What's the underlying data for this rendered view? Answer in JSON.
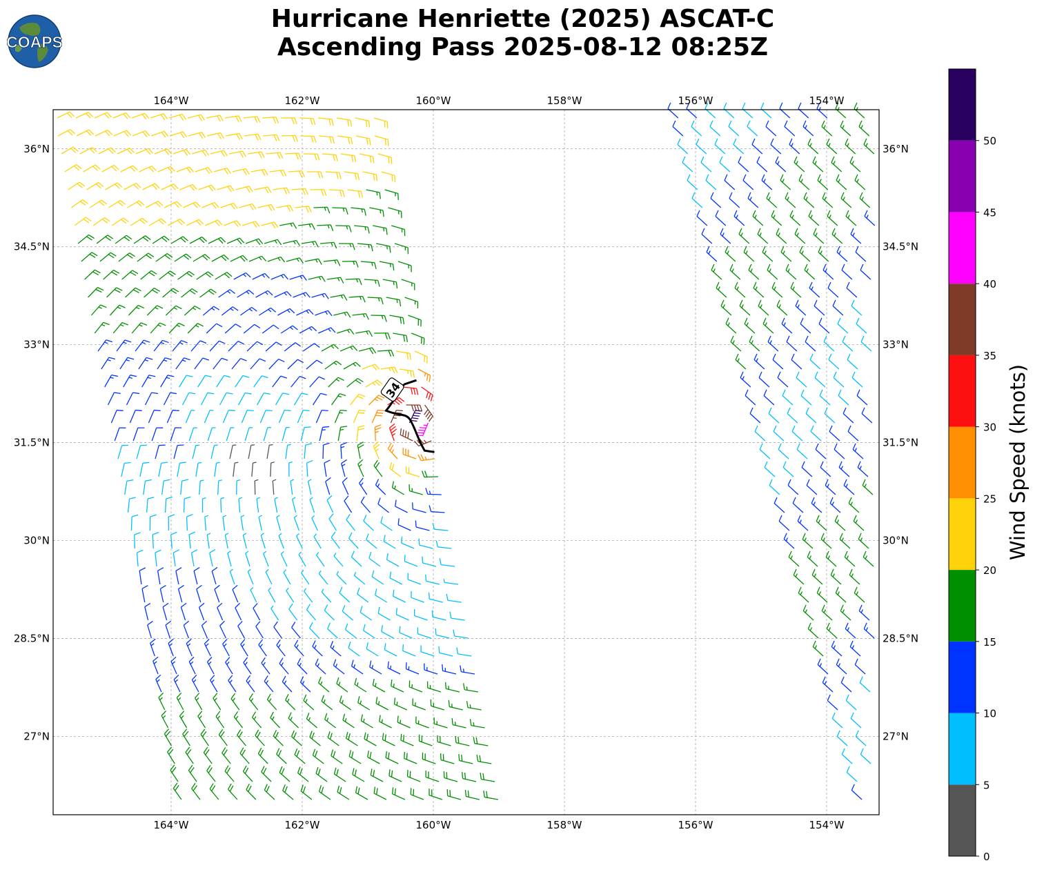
{
  "title": {
    "line1": "Hurricane Henriette (2025) ASCAT-C",
    "line2": "Ascending Pass 2025-08-12 08:25Z"
  },
  "logo": {
    "text": "COAPS",
    "icon": "globe-icon"
  },
  "map": {
    "lon_range": [
      -165.8,
      -153.2
    ],
    "lat_range": [
      25.8,
      36.6
    ],
    "lon_ticks": [
      "164°W",
      "162°W",
      "160°W",
      "158°W",
      "156°W",
      "154°W"
    ],
    "lon_tick_values": [
      -164,
      -162,
      -160,
      -158,
      -156,
      -154
    ],
    "lat_ticks": [
      "36°N",
      "34.5°N",
      "33°N",
      "31.5°N",
      "30°N",
      "28.5°N",
      "27°N"
    ],
    "lat_tick_values": [
      36,
      34.5,
      33,
      31.5,
      30,
      28.5,
      27
    ],
    "grid": true,
    "contour_label": "34",
    "contour_value_kt": 34
  },
  "colorbar": {
    "label": "Wind Speed (knots)",
    "ticks": [
      "0",
      "5",
      "10",
      "15",
      "20",
      "25",
      "30",
      "35",
      "40",
      "45",
      "50"
    ],
    "bins": [
      {
        "min": 0,
        "max": 5,
        "color": "#555555"
      },
      {
        "min": 5,
        "max": 10,
        "color": "#00bfff"
      },
      {
        "min": 10,
        "max": 15,
        "color": "#0033ff"
      },
      {
        "min": 15,
        "max": 20,
        "color": "#008f00"
      },
      {
        "min": 20,
        "max": 25,
        "color": "#ffd20a"
      },
      {
        "min": 25,
        "max": 30,
        "color": "#ff8f00"
      },
      {
        "min": 30,
        "max": 35,
        "color": "#ff1010"
      },
      {
        "min": 35,
        "max": 40,
        "color": "#7f3a28"
      },
      {
        "min": 40,
        "max": 45,
        "color": "#ff00ff"
      },
      {
        "min": 45,
        "max": 50,
        "color": "#8800b0"
      },
      {
        "min": 50,
        "max": 55,
        "color": "#2a0060"
      }
    ]
  },
  "chart_data": {
    "type": "wind-barbs",
    "storm_center": {
      "lon": -160.3,
      "lat": 31.8
    },
    "swaths": [
      {
        "name": "west swath",
        "lon_edge_north": [
          -165.8,
          -160.7
        ],
        "lon_edge_south": [
          -163.8,
          -158.9
        ]
      },
      {
        "name": "east swath",
        "lon_edge_north": [
          -156.3,
          -153.2
        ],
        "lon_edge_south": [
          -153.4,
          -153.2
        ]
      }
    ]
  }
}
